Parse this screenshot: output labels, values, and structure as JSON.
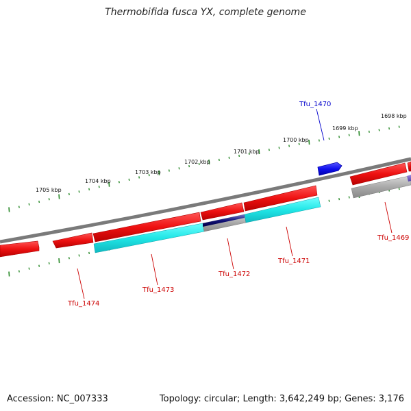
{
  "title": "Thermobifida fusca YX, complete genome",
  "footer": {
    "accession": "Accession: NC_007333",
    "summary": "Topology: circular; Length: 3,642,249 bp; Genes: 3,176"
  },
  "colors": {
    "backbone": "#7a7a7a",
    "tick": "#2a8a2a",
    "forward_gene": "#ee1111",
    "reverse_cds": "#20e6e6",
    "grey_feature": "#a8a8a8",
    "navy_feature": "#111177",
    "highlight_gene": "#1010ee",
    "label_red": "#cc0000",
    "label_blue": "#0000cc"
  },
  "ticks": [
    "1705 kbp",
    "1704 kbp",
    "1703 kbp",
    "1702 kbp",
    "1701 kbp",
    "1700 kbp",
    "1699 kbp",
    "1698 kbp"
  ],
  "gene_labels": [
    {
      "id": "Tfu_1470",
      "color": "blue"
    },
    {
      "id": "Tfu_1469",
      "color": "red"
    },
    {
      "id": "Tfu_1471",
      "color": "red"
    },
    {
      "id": "Tfu_1472",
      "color": "red"
    },
    {
      "id": "Tfu_1473",
      "color": "red"
    },
    {
      "id": "Tfu_1474",
      "color": "red"
    }
  ]
}
